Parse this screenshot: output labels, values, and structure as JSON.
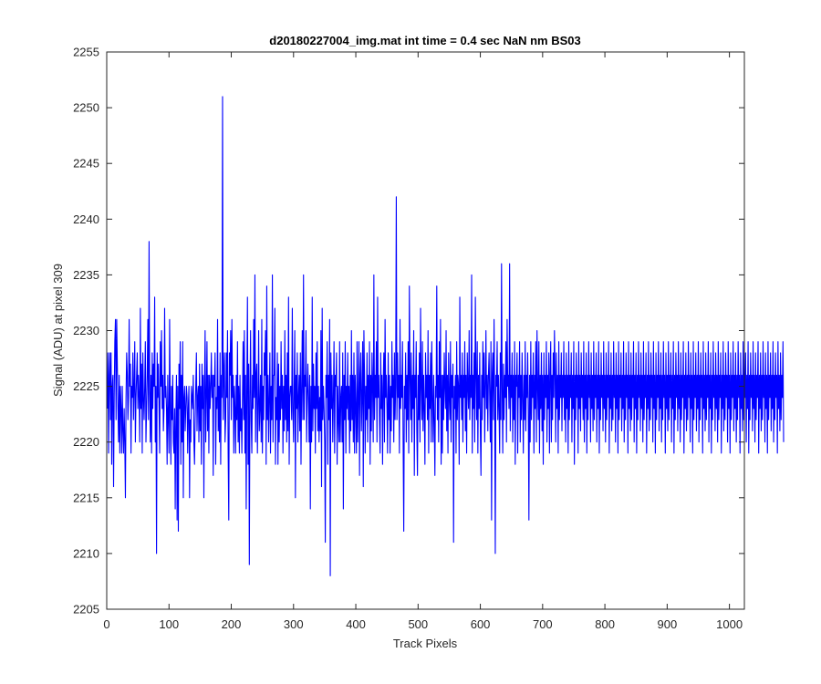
{
  "chart_data": {
    "type": "line",
    "title": "d20180227004_img.mat int time = 0.4 sec  NaN nm BS03",
    "xlabel": "Track Pixels",
    "ylabel": "Signal (ADU) at pixel 309",
    "xlim": [
      0,
      1024
    ],
    "ylim": [
      2205,
      2255
    ],
    "xticks": [
      0,
      100,
      200,
      300,
      400,
      500,
      600,
      700,
      800,
      900,
      1000
    ],
    "yticks": [
      2205,
      2210,
      2215,
      2220,
      2225,
      2230,
      2235,
      2240,
      2245,
      2250,
      2255
    ],
    "grid": false,
    "series": [
      {
        "color": "#0000ff",
        "x_start": 1,
        "x_step": 1,
        "values": [
          2223,
          2228,
          2219,
          2226,
          2228,
          2222,
          2228,
          2218,
          2225,
          2226,
          2216,
          2224,
          2229,
          2231,
          2222,
          2231,
          2227,
          2223,
          2220,
          2226,
          2219,
          2225,
          2223,
          2219,
          2225,
          2221,
          2219,
          2223,
          2220,
          2215,
          2224,
          2228,
          2226,
          2222,
          2224,
          2231,
          2225,
          2227,
          2219,
          2225,
          2224,
          2228,
          2222,
          2225,
          2229,
          2220,
          2224,
          2226,
          2228,
          2223,
          2226,
          2224,
          2220,
          2232,
          2223,
          2227,
          2219,
          2228,
          2224,
          2222,
          2225,
          2229,
          2220,
          2223,
          2226,
          2231,
          2222,
          2238,
          2225,
          2220,
          2226,
          2219,
          2228,
          2223,
          2227,
          2225,
          2233,
          2220,
          2225,
          2210,
          2228,
          2224,
          2227,
          2223,
          2219,
          2229,
          2225,
          2230,
          2223,
          2226,
          2221,
          2223,
          2232,
          2224,
          2225,
          2223,
          2218,
          2226,
          2222,
          2219,
          2231,
          2223,
          2218,
          2225,
          2222,
          2226,
          2220,
          2219,
          2223,
          2214,
          2222,
          2226,
          2213,
          2225,
          2212,
          2227,
          2223,
          2229,
          2218,
          2226,
          2220,
          2229,
          2215,
          2224,
          2225,
          2221,
          2223,
          2225,
          2224,
          2219,
          2223,
          2225,
          2215,
          2222,
          2220,
          2225,
          2224,
          2223,
          2226,
          2220,
          2218,
          2222,
          2225,
          2228,
          2221,
          2224,
          2225,
          2220,
          2227,
          2221,
          2225,
          2218,
          2227,
          2223,
          2226,
          2215,
          2225,
          2230,
          2220,
          2224,
          2229,
          2221,
          2226,
          2219,
          2226,
          2223,
          2225,
          2228,
          2224,
          2226,
          2217,
          2226,
          2225,
          2228,
          2218,
          2224,
          2223,
          2231,
          2221,
          2225,
          2220,
          2228,
          2218,
          2226,
          2224,
          2251,
          2222,
          2226,
          2228,
          2220,
          2222,
          2228,
          2224,
          2230,
          2219,
          2213,
          2228,
          2226,
          2230,
          2222,
          2231,
          2224,
          2226,
          2219,
          2225,
          2223,
          2219,
          2226,
          2222,
          2229,
          2220,
          2225,
          2219,
          2226,
          2221,
          2223,
          2219,
          2224,
          2229,
          2222,
          2230,
          2219,
          2226,
          2214,
          2225,
          2233,
          2218,
          2227,
          2209,
          2224,
          2230,
          2222,
          2219,
          2226,
          2223,
          2231,
          2224,
          2235,
          2220,
          2226,
          2227,
          2219,
          2223,
          2230,
          2221,
          2223,
          2226,
          2220,
          2231,
          2219,
          2225,
          2222,
          2228,
          2226,
          2230,
          2218,
          2234,
          2222,
          2226,
          2220,
          2224,
          2228,
          2219,
          2225,
          2222,
          2235,
          2220,
          2226,
          2226,
          2232,
          2218,
          2224,
          2222,
          2228,
          2218,
          2227,
          2220,
          2225,
          2222,
          2229,
          2223,
          2226,
          2219,
          2225,
          2221,
          2230,
          2222,
          2226,
          2220,
          2228,
          2221,
          2233,
          2218,
          2224,
          2225,
          2225,
          2222,
          2232,
          2223,
          2220,
          2225,
          2230,
          2215,
          2226,
          2223,
          2228,
          2220,
          2224,
          2226,
          2221,
          2228,
          2218,
          2225,
          2230,
          2222,
          2235,
          2222,
          2226,
          2225,
          2230,
          2220,
          2224,
          2227,
          2224,
          2220,
          2226,
          2214,
          2225,
          2220,
          2233,
          2221,
          2227,
          2223,
          2225,
          2219,
          2228,
          2223,
          2229,
          2221,
          2225,
          2220,
          2224,
          2221,
          2230,
          2216,
          2232,
          2222,
          2225,
          2223,
          2220,
          2211,
          2226,
          2224,
          2229,
          2218,
          2226,
          2222,
          2231,
          2208,
          2228,
          2223,
          2226,
          2220,
          2224,
          2229,
          2219,
          2226,
          2225,
          2228,
          2218,
          2225,
          2222,
          2220,
          2229,
          2220,
          2224,
          2225,
          2220,
          2228,
          2214,
          2226,
          2222,
          2229,
          2219,
          2225,
          2223,
          2228,
          2222,
          2225,
          2219,
          2226,
          2221,
          2230,
          2222,
          2226,
          2220,
          2228,
          2219,
          2226,
          2223,
          2219,
          2229,
          2220,
          2224,
          2229,
          2217,
          2226,
          2228,
          2221,
          2224,
          2229,
          2216,
          2230,
          2226,
          2219,
          2225,
          2222,
          2228,
          2220,
          2226,
          2223,
          2229,
          2218,
          2226,
          2221,
          2228,
          2225,
          2220,
          2235,
          2222,
          2226,
          2224,
          2229,
          2220,
          2233,
          2224,
          2226,
          2222,
          2219,
          2228,
          2223,
          2226,
          2218,
          2225,
          2228,
          2220,
          2231,
          2224,
          2226,
          2223,
          2219,
          2228,
          2222,
          2226,
          2219,
          2225,
          2221,
          2229,
          2224,
          2226,
          2220,
          2228,
          2222,
          2225,
          2242,
          2222,
          2228,
          2224,
          2226,
          2219,
          2231,
          2223,
          2226,
          2224,
          2229,
          2220,
          2212,
          2225,
          2223,
          2228,
          2220,
          2226,
          2222,
          2229,
          2219,
          2234,
          2226,
          2222,
          2228,
          2220,
          2226,
          2223,
          2230,
          2217,
          2226,
          2224,
          2229,
          2221,
          2217,
          2226,
          2222,
          2228,
          2220,
          2232,
          2225,
          2222,
          2229,
          2221,
          2226,
          2223,
          2218,
          2228,
          2224,
          2226,
          2222,
          2230,
          2219,
          2226,
          2223,
          2228,
          2220,
          2229,
          2224,
          2220,
          2226,
          2222,
          2217,
          2225,
          2224,
          2234,
          2222,
          2226,
          2220,
          2229,
          2224,
          2231,
          2218,
          2226,
          2219,
          2226,
          2222,
          2228,
          2225,
          2223,
          2230,
          2221,
          2226,
          2219,
          2228,
          2224,
          2222,
          2229,
          2220,
          2226,
          2224,
          2227,
          2211,
          2225,
          2223,
          2226,
          2219,
          2229,
          2222,
          2226,
          2225,
          2218,
          2233,
          2224,
          2226,
          2222,
          2228,
          2220,
          2226,
          2224,
          2229,
          2221,
          2226,
          2219,
          2228,
          2225,
          2223,
          2230,
          2222,
          2226,
          2224,
          2235,
          2219,
          2226,
          2223,
          2228,
          2220,
          2233,
          2226,
          2222,
          2229,
          2219,
          2226,
          2223,
          2228,
          2221,
          2217,
          2226,
          2222,
          2229,
          2224,
          2228,
          2220,
          2225,
          2230,
          2223,
          2226,
          2221,
          2226,
          2228,
          2224,
          2220,
          2229,
          2213,
          2226,
          2228,
          2222,
          2231,
          2224,
          2210,
          2226,
          2225,
          2229,
          2222,
          2226,
          2223,
          2219,
          2228,
          2222,
          2236,
          2225,
          2219,
          2227,
          2222,
          2226,
          2224,
          2229,
          2220,
          2231,
          2225,
          2226,
          2223,
          2236,
          2221,
          2226,
          2224,
          2228,
          2220,
          2226,
          2222,
          2229,
          2218,
          2226,
          2225,
          2228,
          2219,
          2226,
          2224,
          2229,
          2220,
          2226,
          2222,
          2228,
          2224,
          2219,
          2226,
          2222,
          2229,
          2221,
          2226,
          2224,
          2228,
          2223,
          2213,
          2226,
          2220,
          2229,
          2222,
          2226,
          2224,
          2228,
          2219,
          2226,
          2223,
          2229,
          2220,
          2230,
          2225,
          2222,
          2229,
          2219,
          2226,
          2223,
          2228,
          2221,
          2226,
          2218,
          2228,
          2222,
          2226,
          2224,
          2229,
          2220,
          2226,
          2223,
          2228,
          2219,
          2226,
          2229,
          2220,
          2226,
          2222,
          2228,
          2224,
          2230,
          2226,
          2220,
          2228,
          2223,
          2226,
          2219,
          2229,
          2222,
          2226,
          2224,
          2228,
          2221,
          2226,
          2224,
          2229,
          2222,
          2226,
          2220,
          2228,
          2223,
          2226,
          2219,
          2229,
          2222,
          2226,
          2224,
          2228,
          2220,
          2226,
          2223,
          2229,
          2218,
          2226,
          2222,
          2228,
          2224,
          2226,
          2219,
          2229,
          2223,
          2226,
          2221,
          2228,
          2224,
          2226,
          2222,
          2229,
          2220,
          2226,
          2223,
          2228,
          2219,
          2226,
          2222,
          2229,
          2224,
          2226,
          2220,
          2228,
          2223,
          2226,
          2221,
          2229,
          2222,
          2226,
          2224,
          2228,
          2220,
          2226,
          2223,
          2229,
          2219,
          2226,
          2222,
          2228,
          2224,
          2226,
          2221,
          2229,
          2223,
          2226,
          2220,
          2228,
          2222,
          2226,
          2224,
          2229,
          2219,
          2226,
          2223,
          2228,
          2221,
          2226,
          2222,
          2229,
          2224,
          2226,
          2220,
          2228,
          2223,
          2226,
          2219,
          2229,
          2222,
          2226,
          2224,
          2228,
          2221,
          2226,
          2223,
          2229,
          2220,
          2226,
          2222,
          2228,
          2224,
          2226,
          2219,
          2229,
          2223,
          2226,
          2221,
          2228,
          2222,
          2226,
          2224,
          2229,
          2220,
          2226,
          2223,
          2228,
          2219,
          2226,
          2222,
          2229,
          2224,
          2226,
          2221,
          2228,
          2223,
          2226,
          2220,
          2229,
          2222,
          2226,
          2224,
          2228,
          2219,
          2226,
          2223,
          2229,
          2221,
          2226,
          2222,
          2228,
          2224,
          2226,
          2220,
          2229,
          2223,
          2226,
          2219,
          2228,
          2222,
          2226,
          2224,
          2229,
          2221,
          2226,
          2223,
          2228,
          2220,
          2226,
          2222,
          2229,
          2224,
          2226,
          2219,
          2228,
          2223,
          2226,
          2221,
          2229,
          2222,
          2226,
          2224,
          2228,
          2220,
          2226,
          2223,
          2229,
          2219,
          2226,
          2222,
          2228,
          2224,
          2226,
          2221,
          2229,
          2223,
          2226,
          2220,
          2228,
          2222,
          2226,
          2224,
          2229,
          2219,
          2226,
          2223,
          2228,
          2221,
          2226,
          2222,
          2229,
          2224,
          2226,
          2220,
          2228,
          2223,
          2226,
          2219,
          2229,
          2222,
          2226,
          2224,
          2228,
          2221,
          2226,
          2223,
          2229,
          2220,
          2226,
          2222,
          2228,
          2224,
          2226,
          2219,
          2229,
          2223,
          2226,
          2221,
          2228,
          2222,
          2226,
          2224,
          2229,
          2220,
          2226,
          2223,
          2228,
          2219,
          2226,
          2222,
          2229,
          2224,
          2226,
          2221,
          2228,
          2223,
          2226,
          2220,
          2229,
          2222,
          2226,
          2224,
          2228,
          2219,
          2226,
          2223,
          2229,
          2221,
          2226,
          2222,
          2228,
          2224,
          2226,
          2220,
          2229,
          2223,
          2226,
          2219,
          2228,
          2222,
          2226,
          2224,
          2229,
          2221,
          2226,
          2223,
          2228,
          2220,
          2226,
          2222,
          2229,
          2224,
          2226,
          2219,
          2228,
          2223,
          2226,
          2221,
          2229,
          2222,
          2226,
          2224,
          2228,
          2220,
          2226,
          2223,
          2229,
          2219,
          2226,
          2222,
          2228,
          2224,
          2226,
          2221,
          2229,
          2223,
          2226,
          2220,
          2228,
          2222,
          2226,
          2224,
          2229,
          2219,
          2226,
          2223,
          2228,
          2221,
          2226,
          2222,
          2229,
          2224,
          2226,
          2220,
          2228,
          2223,
          2226,
          2219,
          2229,
          2222,
          2226,
          2224,
          2228,
          2221,
          2226,
          2223,
          2229,
          2220,
          2226,
          2222,
          2228,
          2224,
          2226,
          2219,
          2229,
          2223,
          2226,
          2221,
          2228,
          2222,
          2226,
          2224,
          2229,
          2220
        ]
      }
    ]
  }
}
